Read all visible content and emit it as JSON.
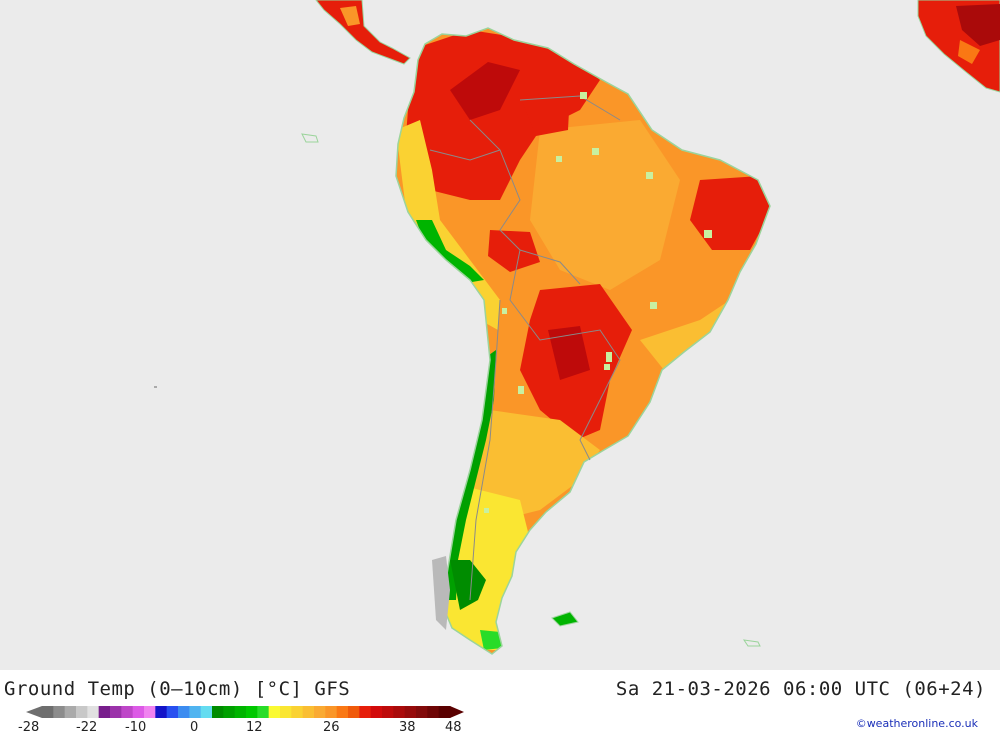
{
  "map": {
    "title": "Ground Temp (0–10cm) [°C] GFS",
    "valid_time": "Sa 21-03-2026 06:00 UTC (06+24)",
    "credit": "©weatheronline.co.uk",
    "region": "South America",
    "colors": {
      "ocean": "#ebebeb",
      "border": "#9a9a9a",
      "coast": "#9bd49b"
    }
  },
  "legend": {
    "ticks": [
      "-28",
      "-22",
      "-10",
      "0",
      "12",
      "26",
      "38",
      "48"
    ],
    "colors": [
      "#6e6e6e",
      "#8c8c8c",
      "#aaaaaa",
      "#c8c8c8",
      "#e1e1e1",
      "#781e8c",
      "#9b32aa",
      "#be46c8",
      "#dc5ae6",
      "#f082f0",
      "#1414c8",
      "#2850f0",
      "#3c8cf0",
      "#50b4f0",
      "#64dcf0",
      "#008c00",
      "#00a000",
      "#00b400",
      "#00c800",
      "#28dc28",
      "#fafa32",
      "#fae632",
      "#fad232",
      "#fabe32",
      "#faaa32",
      "#fa9628",
      "#fa7814",
      "#f05a0a",
      "#e61e0a",
      "#d20a0a",
      "#be0a0a",
      "#aa0a0a",
      "#960a0a",
      "#820a0a",
      "#6e0505",
      "#5a0000"
    ]
  }
}
